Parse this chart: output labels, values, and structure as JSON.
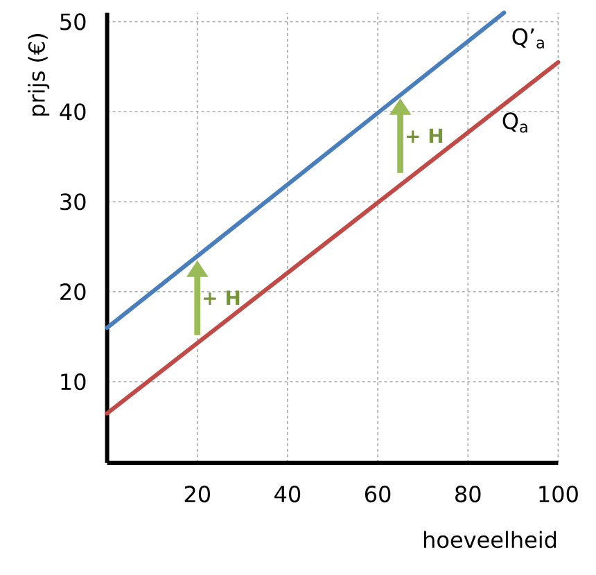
{
  "chart_data": {
    "type": "line",
    "xlabel": "hoeveelheid",
    "ylabel": "prijs (€)",
    "xlim": [
      0,
      100
    ],
    "ylim": [
      1,
      51
    ],
    "xticks": [
      20,
      40,
      60,
      80,
      100
    ],
    "yticks": [
      10,
      20,
      30,
      40,
      50
    ],
    "grid": true,
    "marker": "none",
    "line_style": "solid",
    "series": [
      {
        "name": "Q’$_{a}$",
        "color": "#4a7ebb",
        "x": [
          0,
          88
        ],
        "values": [
          16,
          51
        ]
      },
      {
        "name": "Q$_{a}$",
        "color": "#be4b48",
        "x": [
          0,
          100
        ],
        "values": [
          6.5,
          45.5
        ]
      }
    ],
    "annotations": [
      {
        "text": "+ H",
        "x": 20,
        "y": 23.5
      },
      {
        "text": "+ H",
        "x": 65,
        "y": 41.5
      }
    ]
  }
}
